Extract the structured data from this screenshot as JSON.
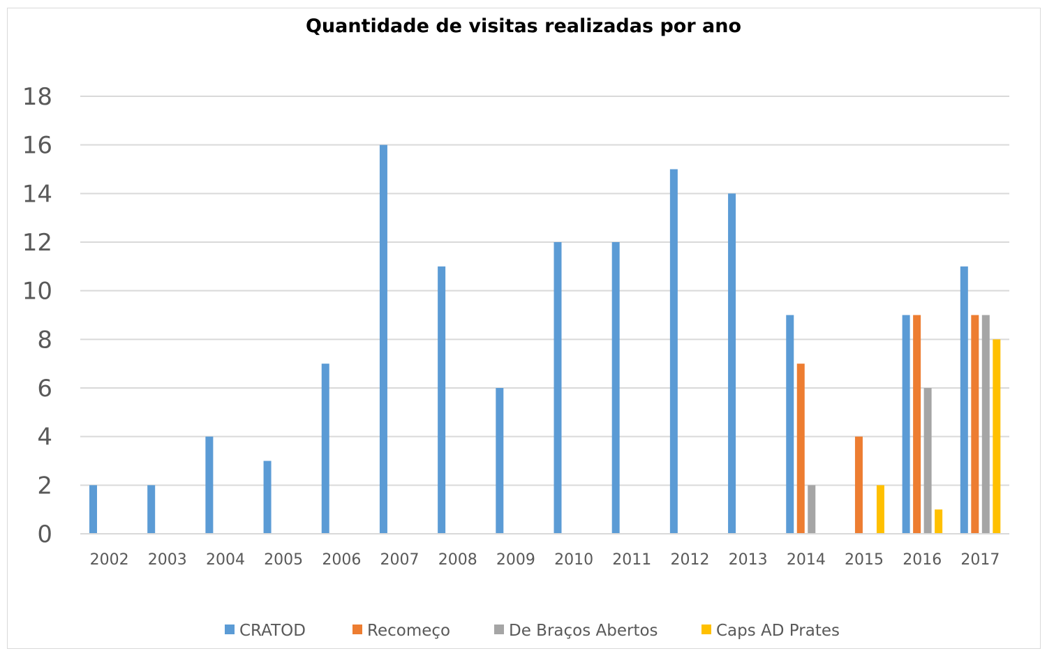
{
  "chart_data": {
    "type": "bar",
    "title": "Quantidade de visitas realizadas por ano",
    "xlabel": "",
    "ylabel": "",
    "ylim": [
      0,
      18
    ],
    "yticks": [
      0,
      2,
      4,
      6,
      8,
      10,
      12,
      14,
      16,
      18
    ],
    "grid": true,
    "legend_position": "bottom",
    "categories": [
      "2002",
      "2003",
      "2004",
      "2005",
      "2006",
      "2007",
      "2008",
      "2009",
      "2010",
      "2011",
      "2012",
      "2013",
      "2014",
      "2015",
      "2016",
      "2017"
    ],
    "series": [
      {
        "name": "CRATOD",
        "color": "#5b9bd5",
        "values": [
          2,
          2,
          4,
          3,
          7,
          16,
          11,
          6,
          12,
          12,
          15,
          14,
          9,
          0,
          9,
          11
        ]
      },
      {
        "name": "Recomeço",
        "color": "#ed7d31",
        "values": [
          0,
          0,
          0,
          0,
          0,
          0,
          0,
          0,
          0,
          0,
          0,
          0,
          7,
          4,
          9,
          9
        ]
      },
      {
        "name": "De Braços Abertos",
        "color": "#a5a5a5",
        "values": [
          0,
          0,
          0,
          0,
          0,
          0,
          0,
          0,
          0,
          0,
          0,
          0,
          2,
          0,
          6,
          9
        ]
      },
      {
        "name": "Caps AD Prates",
        "color": "#ffc000",
        "values": [
          0,
          0,
          0,
          0,
          0,
          0,
          0,
          0,
          0,
          0,
          0,
          0,
          0,
          2,
          1,
          8
        ]
      }
    ]
  }
}
